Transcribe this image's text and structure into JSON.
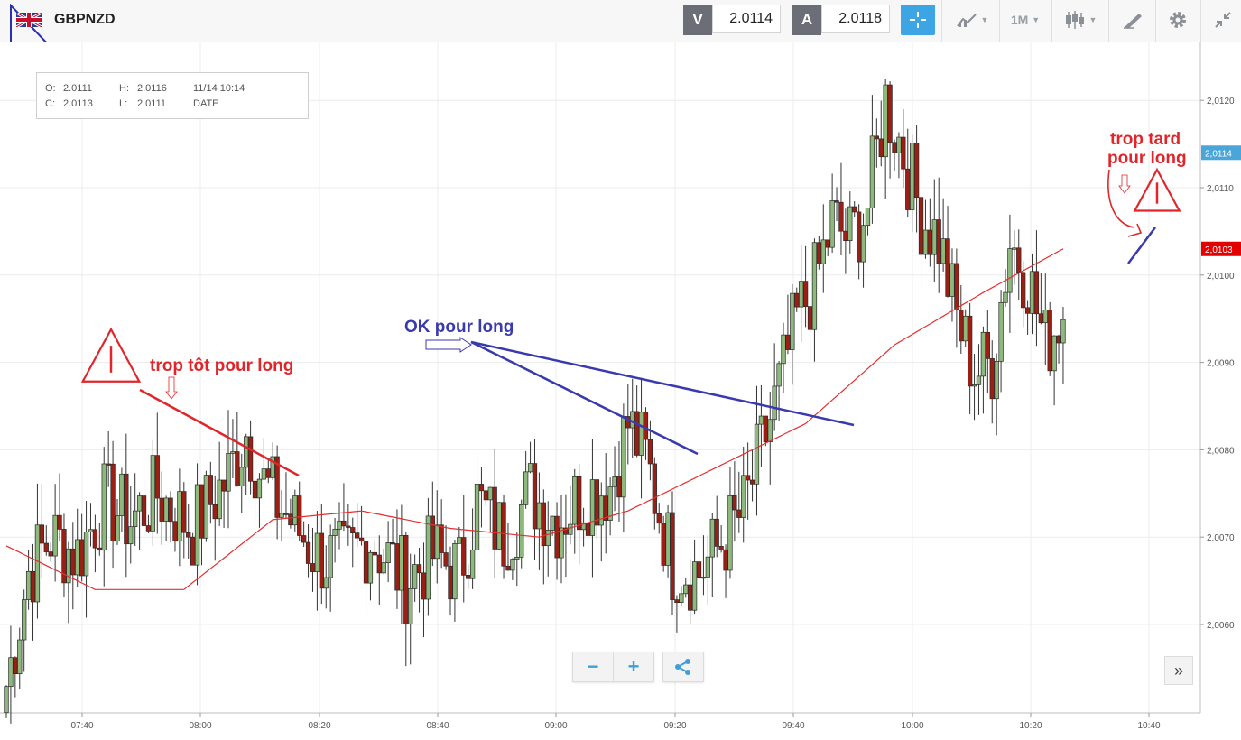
{
  "app": {
    "symbol": "GBPNZD",
    "bid_label": "V",
    "bid_value": "2.0114",
    "ask_label": "A",
    "ask_value": "2.0118",
    "timeframe": "1M"
  },
  "icons": [
    "flag-icon",
    "crosshair-icon",
    "indicators-icon",
    "candlestick-icon",
    "drawing-icon",
    "settings-icon",
    "fullscreen-icon",
    "zoom-out-icon",
    "zoom-in-icon",
    "share-icon",
    "scroll-right-icon"
  ],
  "colors": {
    "accent": "#3ea5e4",
    "up": "#8db97c",
    "down": "#9b1f14",
    "ma": "#e23030",
    "annotation_red": "#e0262b",
    "annotation_blue": "#3a3ab0"
  },
  "ohlc": {
    "o_label": "O:",
    "o_value": "2.0111",
    "h_label": "H:",
    "h_value": "2.0116",
    "c_label": "C:",
    "c_value": "2.0113",
    "l_label": "L:",
    "l_value": "2.0111",
    "time": "11/14 10:14",
    "date_label": "DATE"
  },
  "annotations": {
    "too_early": "trop tôt pour long",
    "ok": "OK pour long",
    "too_late_1": "trop tard",
    "too_late_2": "pour long"
  },
  "zoom": {
    "minus": "−",
    "plus": "+"
  },
  "more": "»",
  "chart_data": {
    "type": "candlestick",
    "ylim": [
      2.0051,
      2.0127
    ],
    "y_ticks": [
      "2,0060",
      "2,0070",
      "2,0080",
      "2,0090",
      "2,0100",
      "2,0110",
      "2,0120"
    ],
    "x_ticks": [
      "07:40",
      "08:00",
      "08:20",
      "08:40",
      "09:00",
      "09:20",
      "09:40",
      "10:00",
      "10:20",
      "10:40"
    ],
    "price_labels": {
      "current": "2,0114",
      "ma": "2,0103"
    },
    "waypoints": [
      [
        0,
        2.0053
      ],
      [
        5,
        2.0066
      ],
      [
        10,
        2.007
      ],
      [
        16,
        2.0068
      ],
      [
        22,
        2.0074
      ],
      [
        28,
        2.0072
      ],
      [
        34,
        2.0075
      ],
      [
        42,
        2.0071
      ],
      [
        50,
        2.0077
      ],
      [
        54,
        2.0082
      ],
      [
        58,
        2.0076
      ],
      [
        64,
        2.0072
      ],
      [
        70,
        2.0068
      ],
      [
        76,
        2.0067
      ],
      [
        82,
        2.007
      ],
      [
        90,
        2.0065
      ],
      [
        96,
        2.0068
      ],
      [
        102,
        2.0066
      ],
      [
        106,
        2.0074
      ],
      [
        112,
        2.007
      ],
      [
        118,
        2.0075
      ],
      [
        124,
        2.0072
      ],
      [
        130,
        2.0075
      ],
      [
        136,
        2.0076
      ],
      [
        140,
        2.0083
      ],
      [
        144,
        2.0079
      ],
      [
        150,
        2.0067
      ],
      [
        156,
        2.0066
      ],
      [
        162,
        2.007
      ],
      [
        166,
        2.0073
      ],
      [
        170,
        2.008
      ],
      [
        174,
        2.0087
      ],
      [
        178,
        2.0095
      ],
      [
        182,
        2.0099
      ],
      [
        186,
        2.0106
      ],
      [
        190,
        2.0104
      ],
      [
        194,
        2.0108
      ],
      [
        198,
        2.012
      ],
      [
        202,
        2.0114
      ],
      [
        206,
        2.0107
      ],
      [
        210,
        2.0104
      ],
      [
        214,
        2.0095
      ],
      [
        218,
        2.0089
      ],
      [
        222,
        2.009
      ],
      [
        226,
        2.0104
      ],
      [
        230,
        2.01
      ],
      [
        234,
        2.0092
      ],
      [
        238,
        2.0096
      ]
    ],
    "ma_waypoints": [
      [
        0,
        2.0069
      ],
      [
        20,
        2.0064
      ],
      [
        40,
        2.0064
      ],
      [
        60,
        2.0072
      ],
      [
        80,
        2.0073
      ],
      [
        100,
        2.0071
      ],
      [
        120,
        2.007
      ],
      [
        140,
        2.0073
      ],
      [
        160,
        2.0078
      ],
      [
        180,
        2.0083
      ],
      [
        200,
        2.0092
      ],
      [
        220,
        2.0098
      ],
      [
        238,
        2.0103
      ]
    ]
  }
}
